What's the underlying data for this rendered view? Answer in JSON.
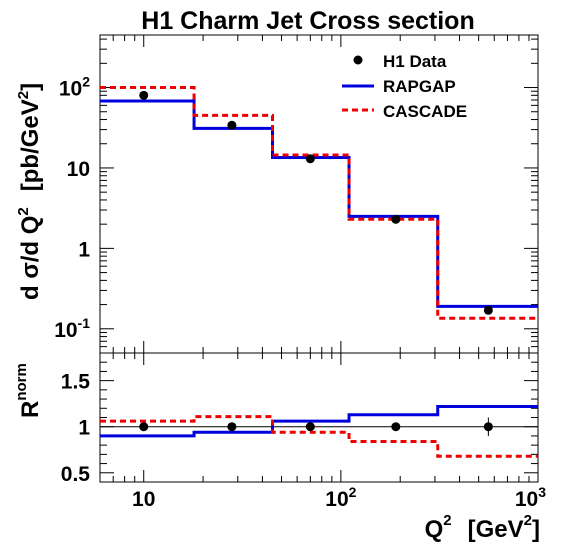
{
  "chart_data": [
    {
      "type": "scatter",
      "panel": "main",
      "title": "H1 Charm Jet Cross section",
      "ylabel_main": "d σ/d Q",
      "ylabel_sup": "2",
      "ylabel_units_pre": "[pb/GeV",
      "ylabel_units_sup": "2",
      "ylabel_units_post": "]",
      "xscale": "log",
      "yscale": "log",
      "xlim": [
        6,
        1000
      ],
      "ylim": [
        0.05,
        450
      ],
      "ytick_labels": [
        {
          "value": 100,
          "base": "10",
          "exp": "2"
        },
        {
          "value": 10,
          "base": "10",
          "exp": ""
        },
        {
          "value": 1,
          "base": "1",
          "exp": ""
        },
        {
          "value": 0.1,
          "base": "10",
          "exp": "-1"
        }
      ],
      "bin_edges": [
        6,
        18,
        45,
        110,
        310,
        1000
      ],
      "series": [
        {
          "name": "H1 Data",
          "style": "points",
          "color": "#000000",
          "x": [
            10,
            28,
            70,
            190,
            560
          ],
          "y": [
            80,
            34,
            13,
            2.3,
            0.17
          ]
        },
        {
          "name": "RAPGAP",
          "style": "histogram",
          "color": "#0000dd",
          "values": [
            68,
            31,
            13.5,
            2.5,
            0.19
          ]
        },
        {
          "name": "CASCADE",
          "style": "dashed-histogram",
          "color": "#ee0000",
          "values": [
            100,
            45,
            14.5,
            2.3,
            0.135
          ]
        }
      ],
      "legend": {
        "position": "top-right",
        "entries": [
          "H1 Data",
          "RAPGAP",
          "CASCADE"
        ]
      }
    },
    {
      "type": "scatter",
      "panel": "ratio",
      "ylabel_main": "R",
      "ylabel_sup": "norm",
      "xlabel_main": "Q",
      "xlabel_sup": "2",
      "xlabel_units_pre": "[GeV",
      "xlabel_units_sup": "2",
      "xlabel_units_post": "]",
      "xscale": "log",
      "xlim": [
        6,
        1000
      ],
      "ylim": [
        0.4,
        1.8
      ],
      "ytick_labels": [
        {
          "value": 1.5,
          "label": "1.5"
        },
        {
          "value": 1,
          "label": "1"
        },
        {
          "value": 0.5,
          "label": "0.5"
        }
      ],
      "xtick_labels": [
        {
          "value": 10,
          "base": "10",
          "exp": ""
        },
        {
          "value": 100,
          "base": "10",
          "exp": "2"
        },
        {
          "value": 1000,
          "base": "10",
          "exp": "3"
        }
      ],
      "reference_line": 1,
      "bin_edges": [
        6,
        18,
        45,
        110,
        310,
        1000
      ],
      "series": [
        {
          "name": "H1 Data",
          "style": "points",
          "color": "#000000",
          "x": [
            10,
            28,
            70,
            190,
            560
          ],
          "y": [
            1,
            1,
            1,
            1,
            1
          ],
          "yerr": [
            0,
            0,
            0,
            0,
            0.1
          ]
        },
        {
          "name": "RAPGAP",
          "style": "histogram",
          "color": "#0000dd",
          "values": [
            0.9,
            0.94,
            1.06,
            1.13,
            1.22
          ]
        },
        {
          "name": "CASCADE",
          "style": "dashed-histogram",
          "color": "#ee0000",
          "values": [
            1.06,
            1.11,
            0.94,
            0.84,
            0.68
          ]
        }
      ]
    }
  ]
}
